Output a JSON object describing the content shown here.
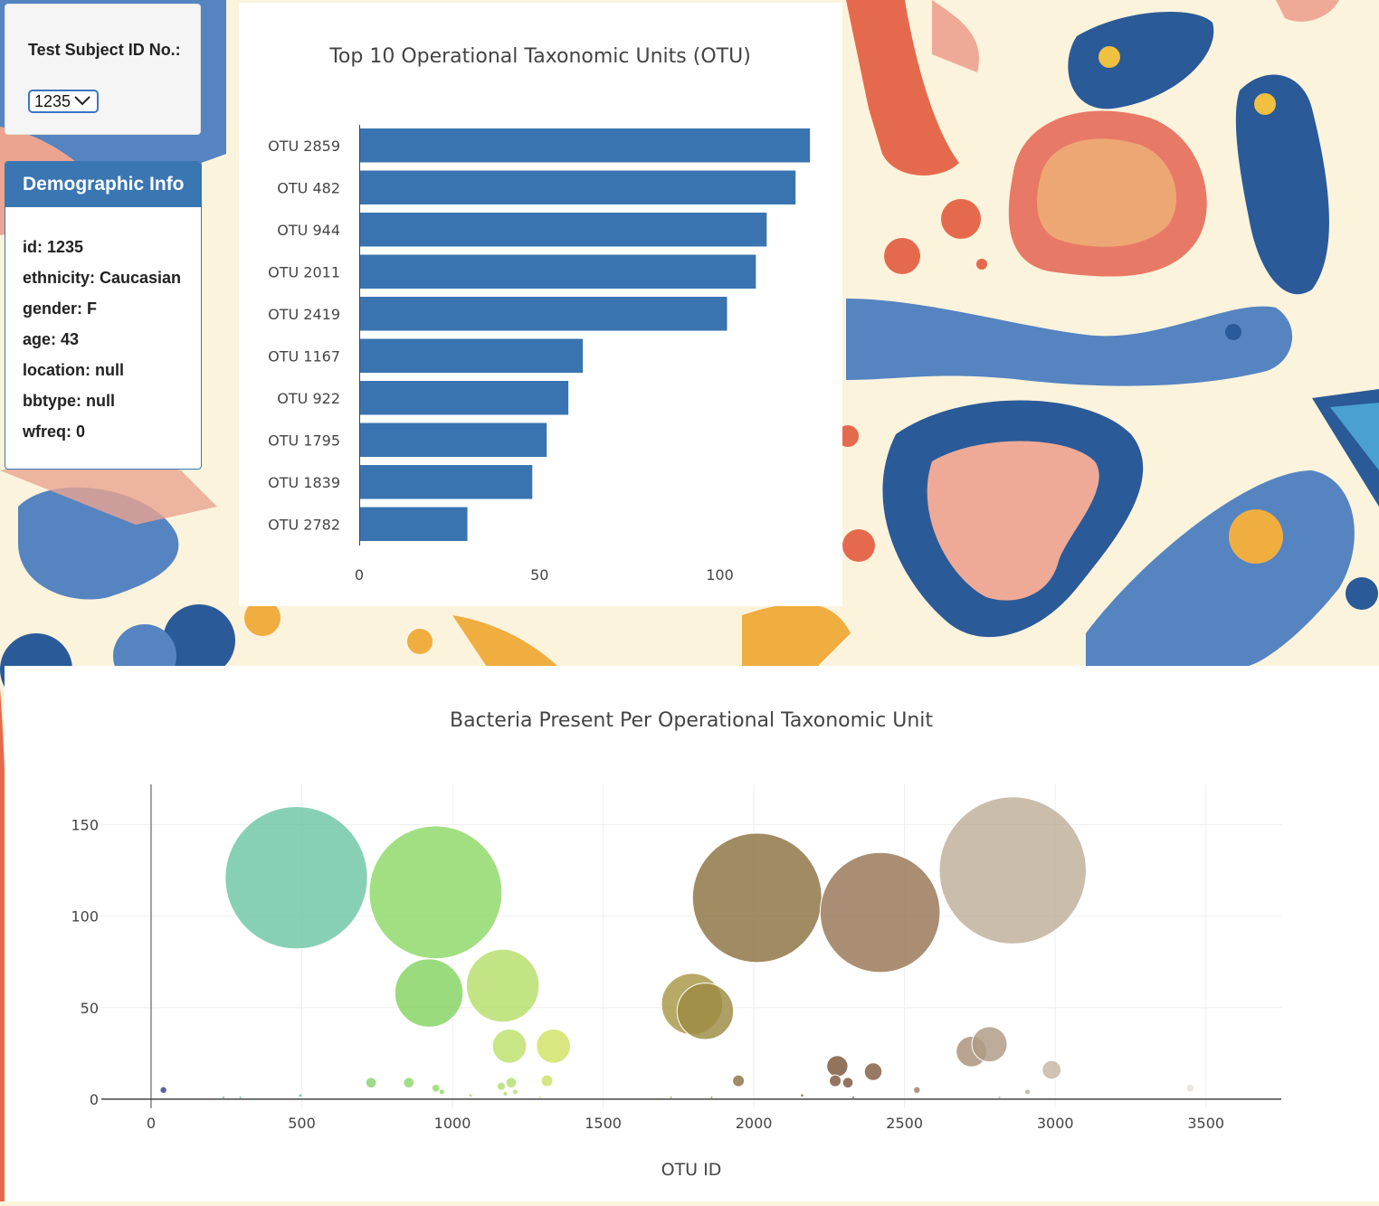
{
  "selector": {
    "label": "Test Subject ID No.:",
    "selected_value": "1235"
  },
  "demographics": {
    "heading": "Demographic Info",
    "items": [
      "id: 1235",
      "ethnicity: Caucasian",
      "gender: F",
      "age: 43",
      "location: null",
      "bbtype: null",
      "wfreq: 0"
    ]
  },
  "chart_data": [
    {
      "type": "bar",
      "orientation": "horizontal",
      "title": "Top 10 Operational Taxonomic Units (OTU)",
      "categories": [
        "OTU 2859",
        "OTU 482",
        "OTU 944",
        "OTU 2011",
        "OTU 2419",
        "OTU 1167",
        "OTU 922",
        "OTU 1795",
        "OTU 1839",
        "OTU 2782"
      ],
      "values": [
        125,
        121,
        113,
        110,
        102,
        62,
        58,
        52,
        48,
        30
      ],
      "xlim": [
        0,
        134
      ],
      "xticks": [
        0,
        50,
        100
      ],
      "color": "#3a74b0"
    },
    {
      "type": "scatter",
      "subtype": "bubble",
      "title": "Bacteria Present Per Operational Taxonomic Unit",
      "xlabel": "OTU ID",
      "ylabel": "",
      "xlim": [
        -165,
        3750
      ],
      "ylim": [
        -5,
        172
      ],
      "xticks": [
        0,
        500,
        1000,
        1500,
        2000,
        2500,
        3000,
        3500
      ],
      "yticks": [
        0,
        50,
        100,
        150
      ],
      "grid": true,
      "points": [
        {
          "x": 41,
          "y": 5,
          "color": "#3a3f8c"
        },
        {
          "x": 240,
          "y": 1,
          "color": "#5aa0a8"
        },
        {
          "x": 296,
          "y": 1,
          "color": "#5fb0a0"
        },
        {
          "x": 495,
          "y": 2,
          "color": "#62b89c"
        },
        {
          "x": 482,
          "y": 121,
          "color": "#6cc6a6"
        },
        {
          "x": 730,
          "y": 9,
          "color": "#8ad072"
        },
        {
          "x": 855,
          "y": 9,
          "color": "#8ed66e"
        },
        {
          "x": 944,
          "y": 113,
          "color": "#8ed866"
        },
        {
          "x": 922,
          "y": 58,
          "color": "#84d460"
        },
        {
          "x": 945,
          "y": 6,
          "color": "#92d86a"
        },
        {
          "x": 965,
          "y": 4,
          "color": "#96d86a"
        },
        {
          "x": 1060,
          "y": 2,
          "color": "#a0da6a"
        },
        {
          "x": 1167,
          "y": 62,
          "color": "#b6de6a"
        },
        {
          "x": 1189,
          "y": 29,
          "color": "#bce06a"
        },
        {
          "x": 1162,
          "y": 7,
          "color": "#b0de6c"
        },
        {
          "x": 1195,
          "y": 9,
          "color": "#b4de6c"
        },
        {
          "x": 1208,
          "y": 4,
          "color": "#b8e06c"
        },
        {
          "x": 1175,
          "y": 3,
          "color": "#b0dc6a"
        },
        {
          "x": 1291,
          "y": 1,
          "color": "#c6de6c"
        },
        {
          "x": 1335,
          "y": 29,
          "color": "#d0e264"
        },
        {
          "x": 1314,
          "y": 10,
          "color": "#cadf66"
        },
        {
          "x": 1725,
          "y": 1,
          "color": "#b0a04e"
        },
        {
          "x": 1795,
          "y": 52,
          "color": "#a89646"
        },
        {
          "x": 1839,
          "y": 48,
          "color": "#9c8a42"
        },
        {
          "x": 1860,
          "y": 1,
          "color": "#9a8a46"
        },
        {
          "x": 1949,
          "y": 10,
          "color": "#8c7246"
        },
        {
          "x": 2011,
          "y": 110,
          "color": "#8c7240"
        },
        {
          "x": 2160,
          "y": 2,
          "color": "#7c5a40"
        },
        {
          "x": 2277,
          "y": 18,
          "color": "#7a5438"
        },
        {
          "x": 2270,
          "y": 10,
          "color": "#7c5640"
        },
        {
          "x": 2312,
          "y": 9,
          "color": "#7a553c"
        },
        {
          "x": 2330,
          "y": 1,
          "color": "#7a5a44"
        },
        {
          "x": 2396,
          "y": 15,
          "color": "#805c42"
        },
        {
          "x": 2419,
          "y": 102,
          "color": "#977556"
        },
        {
          "x": 2541,
          "y": 5,
          "color": "#9e7e66"
        },
        {
          "x": 2722,
          "y": 26,
          "color": "#a89078"
        },
        {
          "x": 2782,
          "y": 30,
          "color": "#b09a84"
        },
        {
          "x": 2815,
          "y": 1,
          "color": "#b4a08c"
        },
        {
          "x": 2859,
          "y": 125,
          "color": "#c0ae9a"
        },
        {
          "x": 2908,
          "y": 4,
          "color": "#c0ae9c"
        },
        {
          "x": 2988,
          "y": 16,
          "color": "#c6b6a4"
        },
        {
          "x": 3448,
          "y": 6,
          "color": "#e6e0dc"
        }
      ]
    }
  ],
  "colors": {
    "bar": "#3a74b0",
    "demo_header": "#3a76b1",
    "select_border": "#3b74c4"
  }
}
